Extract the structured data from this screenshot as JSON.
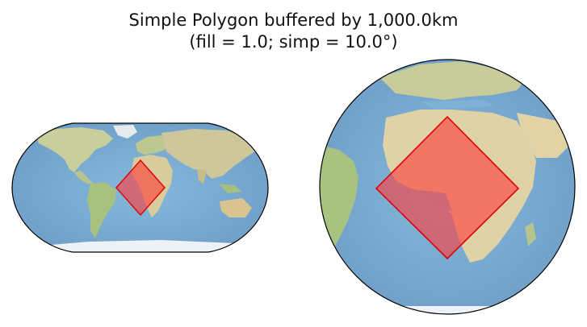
{
  "figure": {
    "title_line1": "Simple Polygon buffered by 1,000.0km",
    "title_line2": "(fill = 1.0; simp = 10.0°)"
  },
  "colors": {
    "ocean": "#7fb1d6",
    "ocean_deep": "#6b9fc9",
    "land_green": "#a9c48c",
    "land_tan": "#dcd2a8",
    "land_desert": "#e8dcc0",
    "ice": "#eef2f6",
    "polygon_fill": "#ff3b3b",
    "polygon_edge": "#e00000",
    "outline": "#000000"
  },
  "maps": [
    {
      "name": "robinson-map",
      "projection": "Robinson"
    },
    {
      "name": "orthographic-map",
      "projection": "Orthographic"
    }
  ],
  "polygon": {
    "fill_opacity": 0.62
  }
}
